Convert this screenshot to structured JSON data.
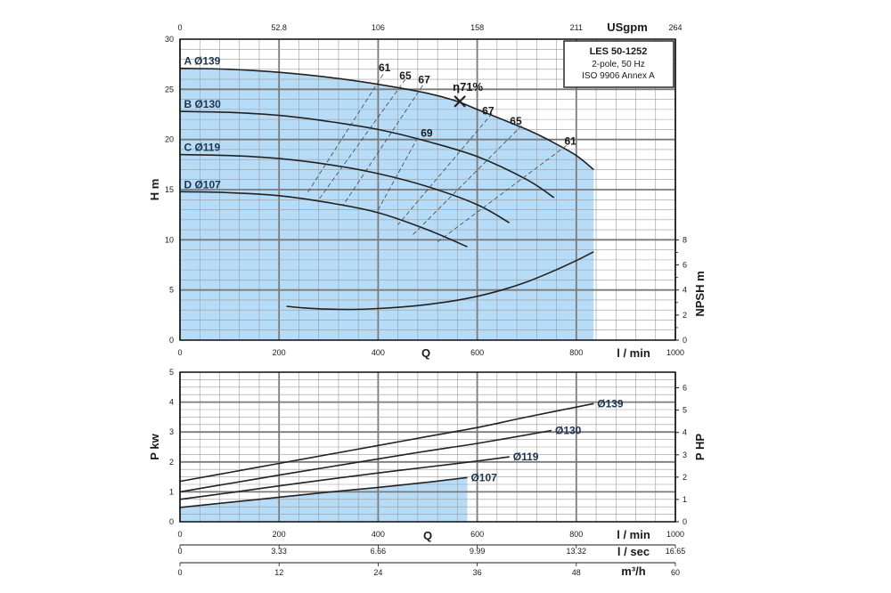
{
  "colors": {
    "fill": "#b7dcf7",
    "curve": "#222222",
    "label": "#1d3550"
  },
  "info_box": {
    "title": "LES 50-1252",
    "line1": "2-pole, 50 Hz",
    "line2": "ISO 9906 Annex A"
  },
  "chart_data": [
    {
      "type": "line",
      "panel": "head",
      "ylabel": "H m",
      "y2label": "NPSH m",
      "xlabel_q": "Q",
      "xlabel_unit": "l / min",
      "top_axis_unit": "USgpm",
      "xlim": [
        0,
        1000
      ],
      "ylim": [
        0,
        30
      ],
      "y2lim": [
        0,
        8
      ],
      "x_ticks": [
        "0",
        "200",
        "400",
        "600",
        "800",
        "1000"
      ],
      "y_ticks": [
        "0",
        "5",
        "10",
        "15",
        "20",
        "25",
        "30"
      ],
      "y2_ticks": [
        "0",
        "2",
        "4",
        "6",
        "8"
      ],
      "top_ticks": [
        "0",
        "52.8",
        "106",
        "158",
        "211",
        "264"
      ],
      "series": [
        {
          "name": "A Ø139",
          "x": [
            0,
            100,
            200,
            300,
            400,
            500,
            560,
            600,
            700,
            750,
            800,
            835
          ],
          "y": [
            27.1,
            27.0,
            26.7,
            26.2,
            25.5,
            24.6,
            23.8,
            23.0,
            21.0,
            19.8,
            18.4,
            17.0
          ]
        },
        {
          "name": "B Ø130",
          "x": [
            0,
            100,
            200,
            300,
            400,
            500,
            600,
            700,
            755
          ],
          "y": [
            22.8,
            22.7,
            22.4,
            21.8,
            21.0,
            19.8,
            18.3,
            16.0,
            14.2
          ]
        },
        {
          "name": "C Ø119",
          "x": [
            0,
            100,
            200,
            300,
            400,
            500,
            600,
            665
          ],
          "y": [
            18.5,
            18.4,
            18.1,
            17.5,
            16.6,
            15.3,
            13.5,
            11.7
          ]
        },
        {
          "name": "D Ø107",
          "x": [
            0,
            100,
            200,
            300,
            400,
            500,
            580
          ],
          "y": [
            14.8,
            14.7,
            14.4,
            13.7,
            12.7,
            11.0,
            9.3
          ]
        },
        {
          "name": "NPSH",
          "axis": "y2",
          "x": [
            215,
            250,
            300,
            350,
            400,
            450,
            500,
            550,
            600,
            650,
            700,
            750,
            800,
            835
          ],
          "y": [
            2.7,
            2.57,
            2.47,
            2.45,
            2.52,
            2.65,
            2.85,
            3.12,
            3.5,
            4.0,
            4.65,
            5.45,
            6.35,
            7.05
          ]
        }
      ],
      "efficiency_lines": [
        {
          "label": "61",
          "x": [
            410,
            255
          ],
          "y": [
            26.5,
            14.5
          ]
        },
        {
          "label": "65",
          "x": [
            455,
            280
          ],
          "y": [
            26.0,
            14.0
          ]
        },
        {
          "label": "67",
          "x": [
            490,
            330
          ],
          "y": [
            25.4,
            13.5
          ]
        },
        {
          "label": "69",
          "x": [
            480,
            400
          ],
          "y": [
            20.2,
            13.0
          ]
        },
        {
          "label": "67",
          "x": [
            630,
            440
          ],
          "y": [
            22.6,
            11.5
          ]
        },
        {
          "label": "65",
          "x": [
            690,
            470
          ],
          "y": [
            21.4,
            10.5
          ]
        },
        {
          "label": "61",
          "x": [
            780,
            520
          ],
          "y": [
            19.4,
            9.8
          ]
        }
      ],
      "efficiency_labels": [
        {
          "label": "61",
          "x": 413,
          "y": 26.8
        },
        {
          "label": "65",
          "x": 455,
          "y": 26.0
        },
        {
          "label": "67",
          "x": 493,
          "y": 25.6
        },
        {
          "label": "69",
          "x": 498,
          "y": 20.3
        },
        {
          "label": "67",
          "x": 622,
          "y": 22.5
        },
        {
          "label": "65",
          "x": 678,
          "y": 21.5
        },
        {
          "label": "61",
          "x": 788,
          "y": 19.5
        }
      ],
      "bep": {
        "x": 565,
        "y": 23.8,
        "label": "η71%"
      }
    },
    {
      "type": "line",
      "panel": "power",
      "ylabel": "P kw",
      "y2label": "P HP",
      "xlabel_q": "Q",
      "xlabel_unit": "l / min",
      "xlim": [
        0,
        1000
      ],
      "ylim": [
        0,
        5
      ],
      "y2lim": [
        0,
        6.7
      ],
      "x_ticks": [
        "0",
        "200",
        "400",
        "600",
        "800",
        "1000"
      ],
      "y_ticks": [
        "0",
        "1",
        "2",
        "3",
        "4",
        "5"
      ],
      "y2_ticks": [
        "0",
        "1",
        "2",
        "3",
        "4",
        "5",
        "6"
      ],
      "lps_unit": "l / sec",
      "lps_ticks": [
        "0",
        "3.33",
        "6.66",
        "9.99",
        "13.32",
        "16.65"
      ],
      "m3h_unit": "m³/h",
      "m3h_ticks": [
        "0",
        "12",
        "24",
        "36",
        "48",
        "60"
      ],
      "series": [
        {
          "name": "Ø139",
          "x": [
            0,
            100,
            200,
            300,
            400,
            500,
            600,
            700,
            835
          ],
          "y": [
            1.35,
            1.65,
            1.95,
            2.25,
            2.55,
            2.85,
            3.15,
            3.5,
            3.95
          ]
        },
        {
          "name": "Ø130",
          "x": [
            0,
            100,
            200,
            300,
            400,
            500,
            600,
            750
          ],
          "y": [
            1.0,
            1.28,
            1.56,
            1.83,
            2.1,
            2.37,
            2.62,
            3.05
          ]
        },
        {
          "name": "Ø119",
          "x": [
            0,
            100,
            200,
            300,
            400,
            500,
            600,
            665
          ],
          "y": [
            0.75,
            0.97,
            1.2,
            1.42,
            1.63,
            1.83,
            2.03,
            2.17
          ]
        },
        {
          "name": "Ø107",
          "x": [
            0,
            100,
            200,
            300,
            400,
            500,
            580
          ],
          "y": [
            0.48,
            0.65,
            0.82,
            0.99,
            1.15,
            1.32,
            1.48
          ]
        }
      ]
    }
  ]
}
